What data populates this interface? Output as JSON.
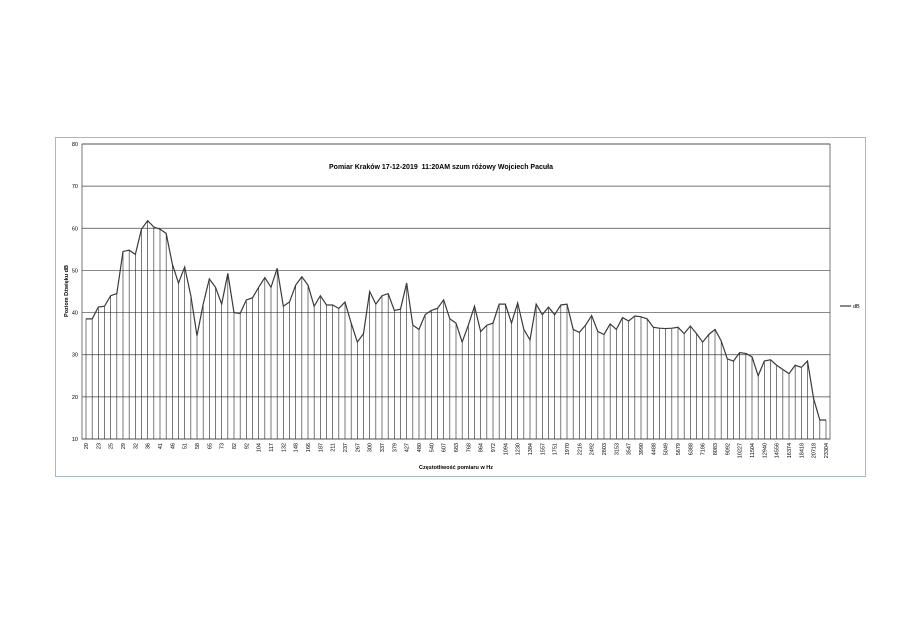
{
  "chart_data": {
    "type": "line",
    "title": "Pomiar Kraków 17-12-2019  11:20AM szum różowy Wojciech Pacuła",
    "y_label": "Poziom Dźwięku dB",
    "x_label": "Częstotliwość pomiaru w Hz",
    "categories": [
      "20",
      null,
      "23",
      null,
      "25",
      null,
      "29",
      null,
      "32",
      null,
      "36",
      null,
      "41",
      null,
      "46",
      null,
      "51",
      null,
      "58",
      null,
      "65",
      null,
      "73",
      null,
      "82",
      null,
      "92",
      null,
      "104",
      null,
      "117",
      null,
      "132",
      null,
      "148",
      null,
      "166",
      null,
      "187",
      null,
      "211",
      null,
      "237",
      null,
      "267",
      null,
      "300",
      null,
      "337",
      null,
      "379",
      null,
      "427",
      null,
      "480",
      null,
      "540",
      null,
      "607",
      null,
      "683",
      null,
      "768",
      null,
      "864",
      null,
      "972",
      null,
      "1094",
      null,
      "1230",
      null,
      "1384",
      null,
      "1557",
      null,
      "1751",
      null,
      "1970",
      null,
      "2216",
      null,
      "2492",
      null,
      "2803",
      null,
      "3153",
      null,
      "3547",
      null,
      "3990",
      null,
      "4488",
      null,
      "5049",
      null,
      "5679",
      null,
      "6388",
      null,
      "7186",
      null,
      "8083",
      null,
      "9092",
      null,
      "10227",
      null,
      "11504",
      null,
      "12940",
      null,
      "14556",
      null,
      "16374",
      null,
      "18418",
      null,
      "20718",
      null,
      "23304"
    ],
    "series": [
      {
        "name": "dB",
        "color": "#3a3a3a",
        "values": [
          38.5,
          38.5,
          41.3,
          41.5,
          44,
          44.5,
          54.5,
          54.8,
          53.8,
          59.8,
          61.8,
          60.3,
          59.8,
          58.8,
          51.5,
          47,
          50.8,
          44,
          34.5,
          42,
          48,
          46,
          42,
          49.3,
          40,
          39.8,
          43,
          43.5,
          46,
          48.3,
          46,
          50.5,
          41.5,
          42.5,
          46.5,
          48.5,
          46.5,
          41.5,
          44,
          41.8,
          41.8,
          41,
          42.5,
          37.5,
          33,
          35,
          45,
          42,
          44,
          44.5,
          40.5,
          40.8,
          47,
          37,
          36,
          39.5,
          40.5,
          41,
          43,
          38.5,
          37.5,
          33,
          37,
          41.5,
          35.5,
          37,
          37.5,
          42,
          42,
          37.5,
          42.3,
          36,
          33.5,
          42,
          39.5,
          41.3,
          39.5,
          41.8,
          42,
          36,
          35.3,
          37,
          39.3,
          35.5,
          34.8,
          37.3,
          36,
          38.8,
          38,
          39.2,
          39,
          38.5,
          36.5,
          36.3,
          36.2,
          36.3,
          36.5,
          35,
          36.8,
          35,
          33,
          34.8,
          36,
          33.3,
          29,
          28.5,
          30.5,
          30.3,
          29.5,
          25,
          28.5,
          28.8,
          27.5,
          26.5,
          25.5,
          27.5,
          27,
          28.5,
          19.5,
          14.5,
          14.5
        ]
      }
    ],
    "ylim": [
      10,
      80
    ],
    "yticks": [
      10,
      20,
      30,
      40,
      50,
      60,
      70,
      80
    ],
    "grid": true,
    "drop_lines": true,
    "legend": "right"
  }
}
